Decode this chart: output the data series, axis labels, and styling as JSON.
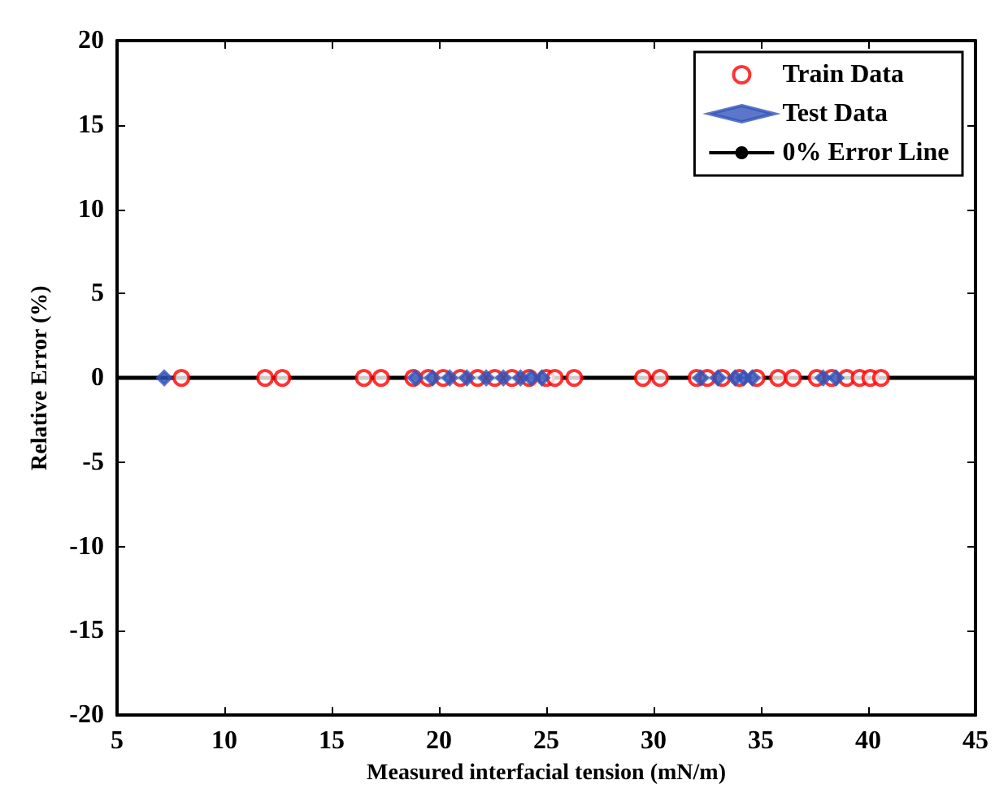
{
  "chart_data": {
    "type": "scatter",
    "xlabel": "Measured interfacial tension (mN/m)",
    "ylabel": "Relative Error (%)",
    "xlim": [
      5,
      45
    ],
    "ylim": [
      -20,
      20
    ],
    "xticks": [
      5,
      10,
      15,
      20,
      25,
      30,
      35,
      40,
      45
    ],
    "yticks": [
      -20,
      -15,
      -10,
      -5,
      0,
      5,
      10,
      15,
      20
    ],
    "grid": false,
    "legend": "top right",
    "series": [
      {
        "name": "Train Data",
        "marker": "circle",
        "color": "#ff0000",
        "x": [
          8.0,
          11.9,
          12.7,
          16.5,
          17.3,
          18.8,
          19.5,
          20.2,
          21.0,
          21.8,
          22.6,
          23.4,
          24.2,
          25.0,
          25.4,
          26.3,
          29.5,
          30.3,
          32.0,
          32.5,
          33.2,
          34.0,
          34.8,
          35.8,
          36.5,
          37.6,
          38.3,
          39.0,
          39.6,
          40.1,
          40.6
        ],
        "values": [
          0,
          0,
          0,
          0,
          0,
          0,
          0,
          0,
          0,
          0,
          0,
          0,
          0,
          0,
          0,
          0,
          0,
          0,
          0,
          0,
          0,
          0,
          0,
          0,
          0,
          0,
          0,
          0,
          0,
          0,
          0
        ]
      },
      {
        "name": "Test Data",
        "marker": "diamond",
        "color": "#3355bb",
        "x": [
          7.2,
          18.9,
          19.7,
          20.5,
          21.3,
          22.2,
          23.0,
          23.8,
          24.3,
          24.8,
          32.2,
          33.0,
          33.8,
          34.2,
          34.6,
          37.9,
          38.5
        ],
        "values": [
          0,
          0,
          0,
          0,
          0,
          0,
          0,
          0,
          0,
          0,
          0,
          0,
          0,
          0,
          0,
          0,
          0
        ]
      },
      {
        "name": "0% Error Line",
        "type": "line",
        "marker": "none",
        "color": "#000000",
        "x": [
          5,
          45
        ],
        "values": [
          0,
          0
        ]
      }
    ]
  }
}
